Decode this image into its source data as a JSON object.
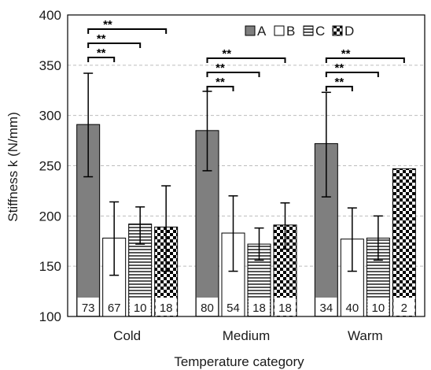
{
  "chart_data": {
    "type": "bar",
    "categories": [
      "Cold",
      "Medium",
      "Warm"
    ],
    "series": [
      {
        "name": "A",
        "values": [
          291,
          285,
          272
        ],
        "err_low": [
          239,
          245,
          219
        ],
        "err_high": [
          342,
          324,
          323
        ],
        "n": [
          "73",
          "80",
          "34"
        ],
        "pattern": "solid-gray",
        "color": "#7f7f7f"
      },
      {
        "name": "B",
        "values": [
          178,
          183,
          177
        ],
        "err_low": [
          141,
          145,
          145
        ],
        "err_high": [
          214,
          220,
          208
        ],
        "n": [
          "67",
          "54",
          "40"
        ],
        "pattern": "white",
        "color": "#ffffff"
      },
      {
        "name": "C",
        "values": [
          192,
          172,
          178
        ],
        "err_low": [
          172,
          156,
          156
        ],
        "err_high": [
          209,
          188,
          200
        ],
        "n": [
          "10",
          "18",
          "10"
        ],
        "pattern": "horizontal-lines",
        "color": "#ffffff"
      },
      {
        "name": "D",
        "values": [
          189,
          191,
          247
        ],
        "err_low": [
          145,
          167,
          null
        ],
        "err_high": [
          230,
          213,
          null
        ],
        "n": [
          "18",
          "18",
          "2"
        ],
        "pattern": "checkerboard",
        "color": "#000000"
      }
    ],
    "significance": [
      {
        "category": "Cold",
        "from": "A",
        "to": "B",
        "label": "**"
      },
      {
        "category": "Cold",
        "from": "A",
        "to": "C",
        "label": "**"
      },
      {
        "category": "Cold",
        "from": "A",
        "to": "D",
        "label": "**"
      },
      {
        "category": "Medium",
        "from": "A",
        "to": "B",
        "label": "**"
      },
      {
        "category": "Medium",
        "from": "A",
        "to": "C",
        "label": "**"
      },
      {
        "category": "Medium",
        "from": "A",
        "to": "D",
        "label": "**"
      },
      {
        "category": "Warm",
        "from": "A",
        "to": "B",
        "label": "**"
      },
      {
        "category": "Warm",
        "from": "A",
        "to": "C",
        "label": "**"
      },
      {
        "category": "Warm",
        "from": "A",
        "to": "D",
        "label": "**"
      }
    ],
    "xlabel": "Temperature category",
    "ylabel": "Stiffness k (N/mm)",
    "ylim": [
      100,
      400
    ],
    "yticks": [
      100,
      150,
      200,
      250,
      300,
      350,
      400
    ],
    "grid": true,
    "legend_position": "top-right"
  }
}
